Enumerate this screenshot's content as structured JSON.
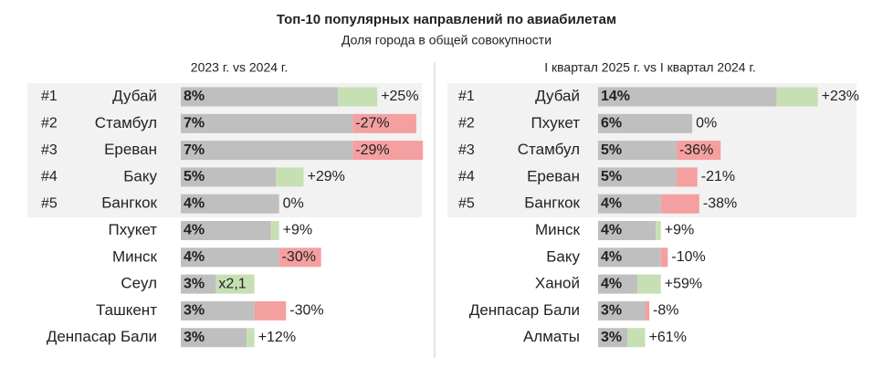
{
  "title": "Топ-10 популярных направлений по авиабилетам",
  "subtitle": "Доля города в общей совокупности",
  "chart_data": [
    {
      "type": "bar",
      "title": "2023 г. vs 2024 г.",
      "ranks": [
        "#1",
        "#2",
        "#3",
        "#4",
        "#5",
        null,
        null,
        null,
        null,
        null
      ],
      "categories": [
        "Дубай",
        "Стамбул",
        "Ереван",
        "Баку",
        "Бангкок",
        "Пхукет",
        "Минск",
        "Сеул",
        "Ташкент",
        "Денпасар Бали"
      ],
      "values": [
        8,
        7,
        7,
        5,
        4,
        4,
        4,
        3,
        3,
        3
      ],
      "value_labels": [
        "8%",
        "7%",
        "7%",
        "5%",
        "4%",
        "4%",
        "4%",
        "3%",
        "3%",
        "3%"
      ],
      "changes": [
        25,
        -27,
        -29,
        29,
        0,
        9,
        -30,
        110,
        -30,
        12
      ],
      "change_labels": [
        "+25%",
        "-27%",
        "-29%",
        "+29%",
        "0%",
        "+9%",
        "-30%",
        "x2,1",
        "-30%",
        "+12%"
      ],
      "xlim": [
        0,
        10
      ],
      "color": "#bfbfbf",
      "increase_color": "#c6e0b4",
      "decrease_color": "#f4a0a0"
    },
    {
      "type": "bar",
      "title": "I квартал 2025 г. vs I квартал 2024 г.",
      "ranks": [
        "#1",
        "#2",
        "#3",
        "#4",
        "#5",
        null,
        null,
        null,
        null,
        null
      ],
      "categories": [
        "Дубай",
        "Пхукет",
        "Стамбул",
        "Ереван",
        "Бангкок",
        "Минск",
        "Баку",
        "Ханой",
        "Денпасар Бали",
        "Алматы"
      ],
      "values": [
        14,
        6,
        5,
        5,
        4,
        4,
        4,
        4,
        3,
        3
      ],
      "value_labels": [
        "14%",
        "6%",
        "5%",
        "5%",
        "4%",
        "4%",
        "4%",
        "4%",
        "3%",
        "3%"
      ],
      "changes": [
        23,
        0,
        -36,
        -21,
        -38,
        9,
        -10,
        59,
        -8,
        61
      ],
      "change_labels": [
        "+23%",
        "0%",
        "-36%",
        "-21%",
        "-38%",
        "+9%",
        "-10%",
        "+59%",
        "-8%",
        "+61%"
      ],
      "xlim": [
        0,
        16
      ],
      "color": "#bfbfbf",
      "increase_color": "#c6e0b4",
      "decrease_color": "#f4a0a0"
    }
  ]
}
